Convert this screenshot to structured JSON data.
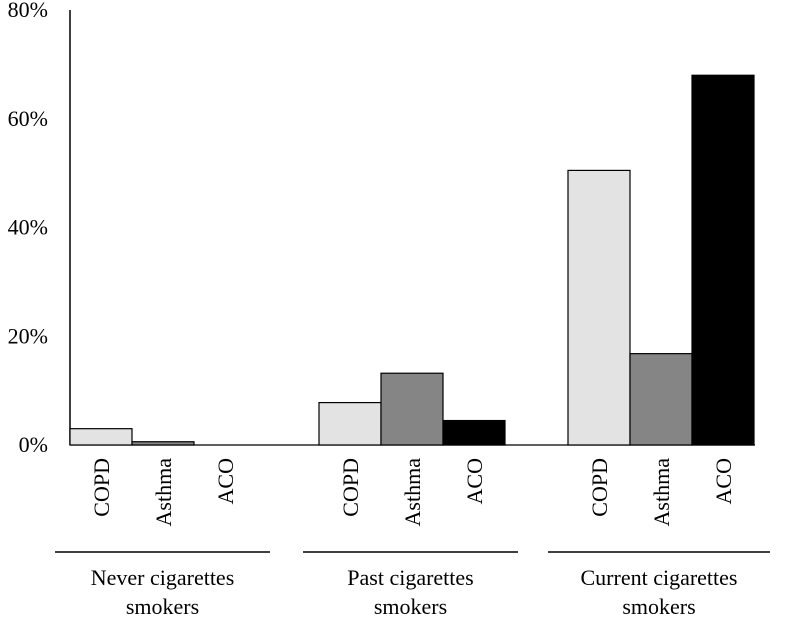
{
  "chart_data": {
    "type": "bar",
    "title": "",
    "xlabel": "",
    "ylabel": "",
    "ylim": [
      0,
      80
    ],
    "yticks": [
      {
        "value": 0,
        "label": "0%"
      },
      {
        "value": 20,
        "label": "20%"
      },
      {
        "value": 40,
        "label": "40%"
      },
      {
        "value": 60,
        "label": "60%"
      },
      {
        "value": 80,
        "label": "80%"
      }
    ],
    "grid": false,
    "legend": "none",
    "groups": [
      {
        "label_lines": [
          "Never cigarettes",
          "smokers"
        ],
        "bars": [
          {
            "category": "COPD",
            "value": 3.0
          },
          {
            "category": "Asthma",
            "value": 0.6
          },
          {
            "category": "ACO",
            "value": 0
          }
        ]
      },
      {
        "label_lines": [
          "Past cigarettes",
          "smokers"
        ],
        "bars": [
          {
            "category": "COPD",
            "value": 7.8
          },
          {
            "category": "Asthma",
            "value": 13.2
          },
          {
            "category": "ACO",
            "value": 4.5
          }
        ]
      },
      {
        "label_lines": [
          "Current cigarettes",
          "smokers"
        ],
        "bars": [
          {
            "category": "COPD",
            "value": 50.5
          },
          {
            "category": "Asthma",
            "value": 16.8
          },
          {
            "category": "ACO",
            "value": 68.0
          }
        ]
      }
    ],
    "category_colors": {
      "COPD": "#e3e3e3",
      "Asthma": "#858585",
      "ACO": "#000000"
    }
  }
}
